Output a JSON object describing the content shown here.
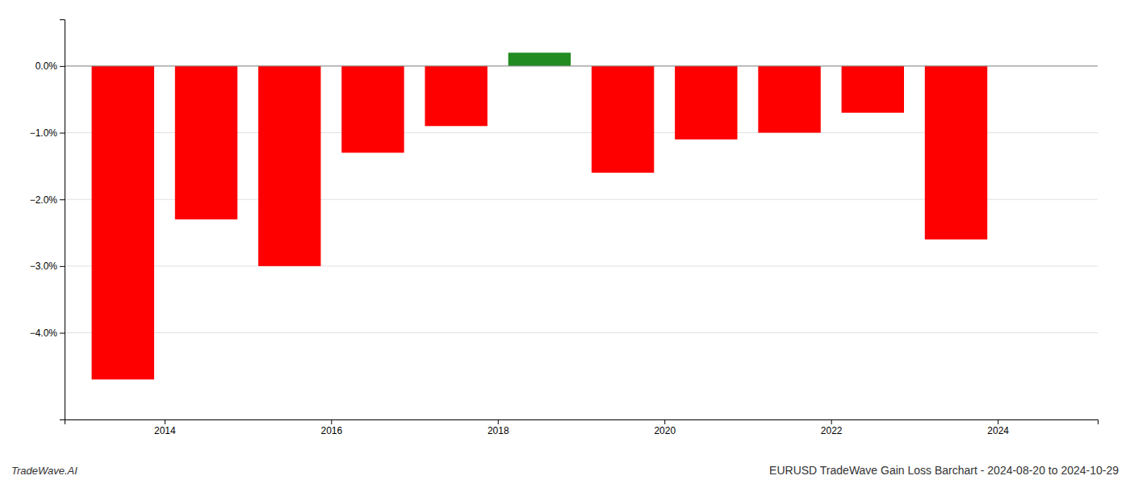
{
  "chart_data": {
    "type": "bar",
    "title": "EURUSD TradeWave Gain Loss Barchart - 2024-08-20 to 2024-10-29",
    "annotations": [
      "TradeWave.AI"
    ],
    "x": [
      2013.5,
      2014.5,
      2015.5,
      2016.5,
      2017.5,
      2018.5,
      2019.5,
      2020.5,
      2021.5,
      2022.5,
      2023.5
    ],
    "values": [
      -0.047,
      -0.023,
      -0.03,
      -0.013,
      -0.009,
      0.002,
      -0.016,
      -0.011,
      -0.01,
      -0.007,
      -0.026
    ],
    "colors": [
      "#ff0000",
      "#ff0000",
      "#ff0000",
      "#ff0000",
      "#ff0000",
      "#228B22",
      "#ff0000",
      "#ff0000",
      "#ff0000",
      "#ff0000",
      "#ff0000"
    ],
    "xlim": [
      2012.8,
      2025.2
    ],
    "xticks": [
      2014,
      2016,
      2018,
      2020,
      2022,
      2024
    ],
    "ylim": [
      -0.053,
      0.007
    ],
    "yticks": [
      {
        "value": 0.0,
        "label": "0.0%"
      },
      {
        "value": -0.01,
        "label": "−1.0%"
      },
      {
        "value": -0.02,
        "label": "−2.0%"
      },
      {
        "value": -0.03,
        "label": "−3.0%"
      },
      {
        "value": -0.04,
        "label": "−4.0%"
      }
    ],
    "grid": true
  }
}
